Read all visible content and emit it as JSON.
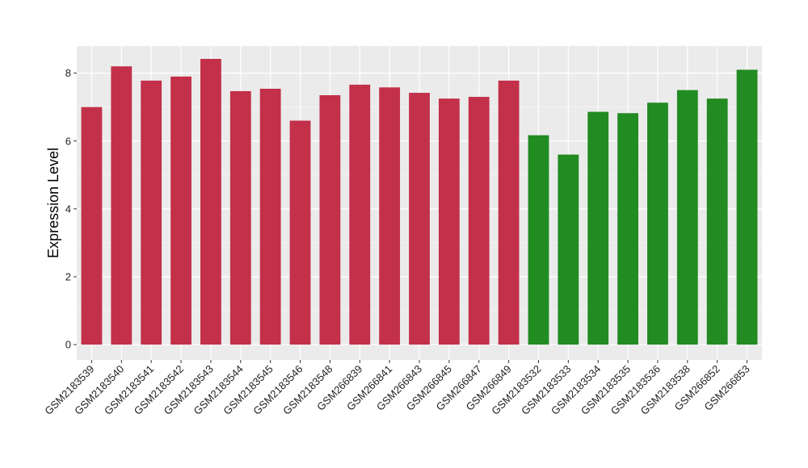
{
  "chart_data": {
    "type": "bar",
    "title": "",
    "xlabel": "",
    "ylabel": "Expression Level",
    "ylim": [
      -0.45,
      8.8
    ],
    "yticks": [
      0,
      2,
      4,
      6,
      8
    ],
    "grid": true,
    "panel_background": "#EBEBEB",
    "categories": [
      "GSM2183539",
      "GSM2183540",
      "GSM2183541",
      "GSM2183542",
      "GSM2183543",
      "GSM2183544",
      "GSM2183545",
      "GSM2183546",
      "GSM2183548",
      "GSM266839",
      "GSM266841",
      "GSM266843",
      "GSM266845",
      "GSM266847",
      "GSM266849",
      "GSM2183532",
      "GSM2183533",
      "GSM2183534",
      "GSM2183535",
      "GSM2183536",
      "GSM2183538",
      "GSM266852",
      "GSM266853"
    ],
    "values": [
      7.0,
      8.2,
      7.78,
      7.9,
      8.42,
      7.47,
      7.54,
      6.6,
      7.35,
      7.66,
      7.58,
      7.42,
      7.25,
      7.3,
      7.78,
      6.17,
      5.6,
      6.86,
      6.82,
      7.13,
      7.5,
      7.25,
      8.1
    ],
    "groups": [
      "red",
      "red",
      "red",
      "red",
      "red",
      "red",
      "red",
      "red",
      "red",
      "red",
      "red",
      "red",
      "red",
      "red",
      "red",
      "green",
      "green",
      "green",
      "green",
      "green",
      "green",
      "green",
      "green"
    ],
    "colors": {
      "red": "#C3304A",
      "green": "#228B22"
    }
  }
}
